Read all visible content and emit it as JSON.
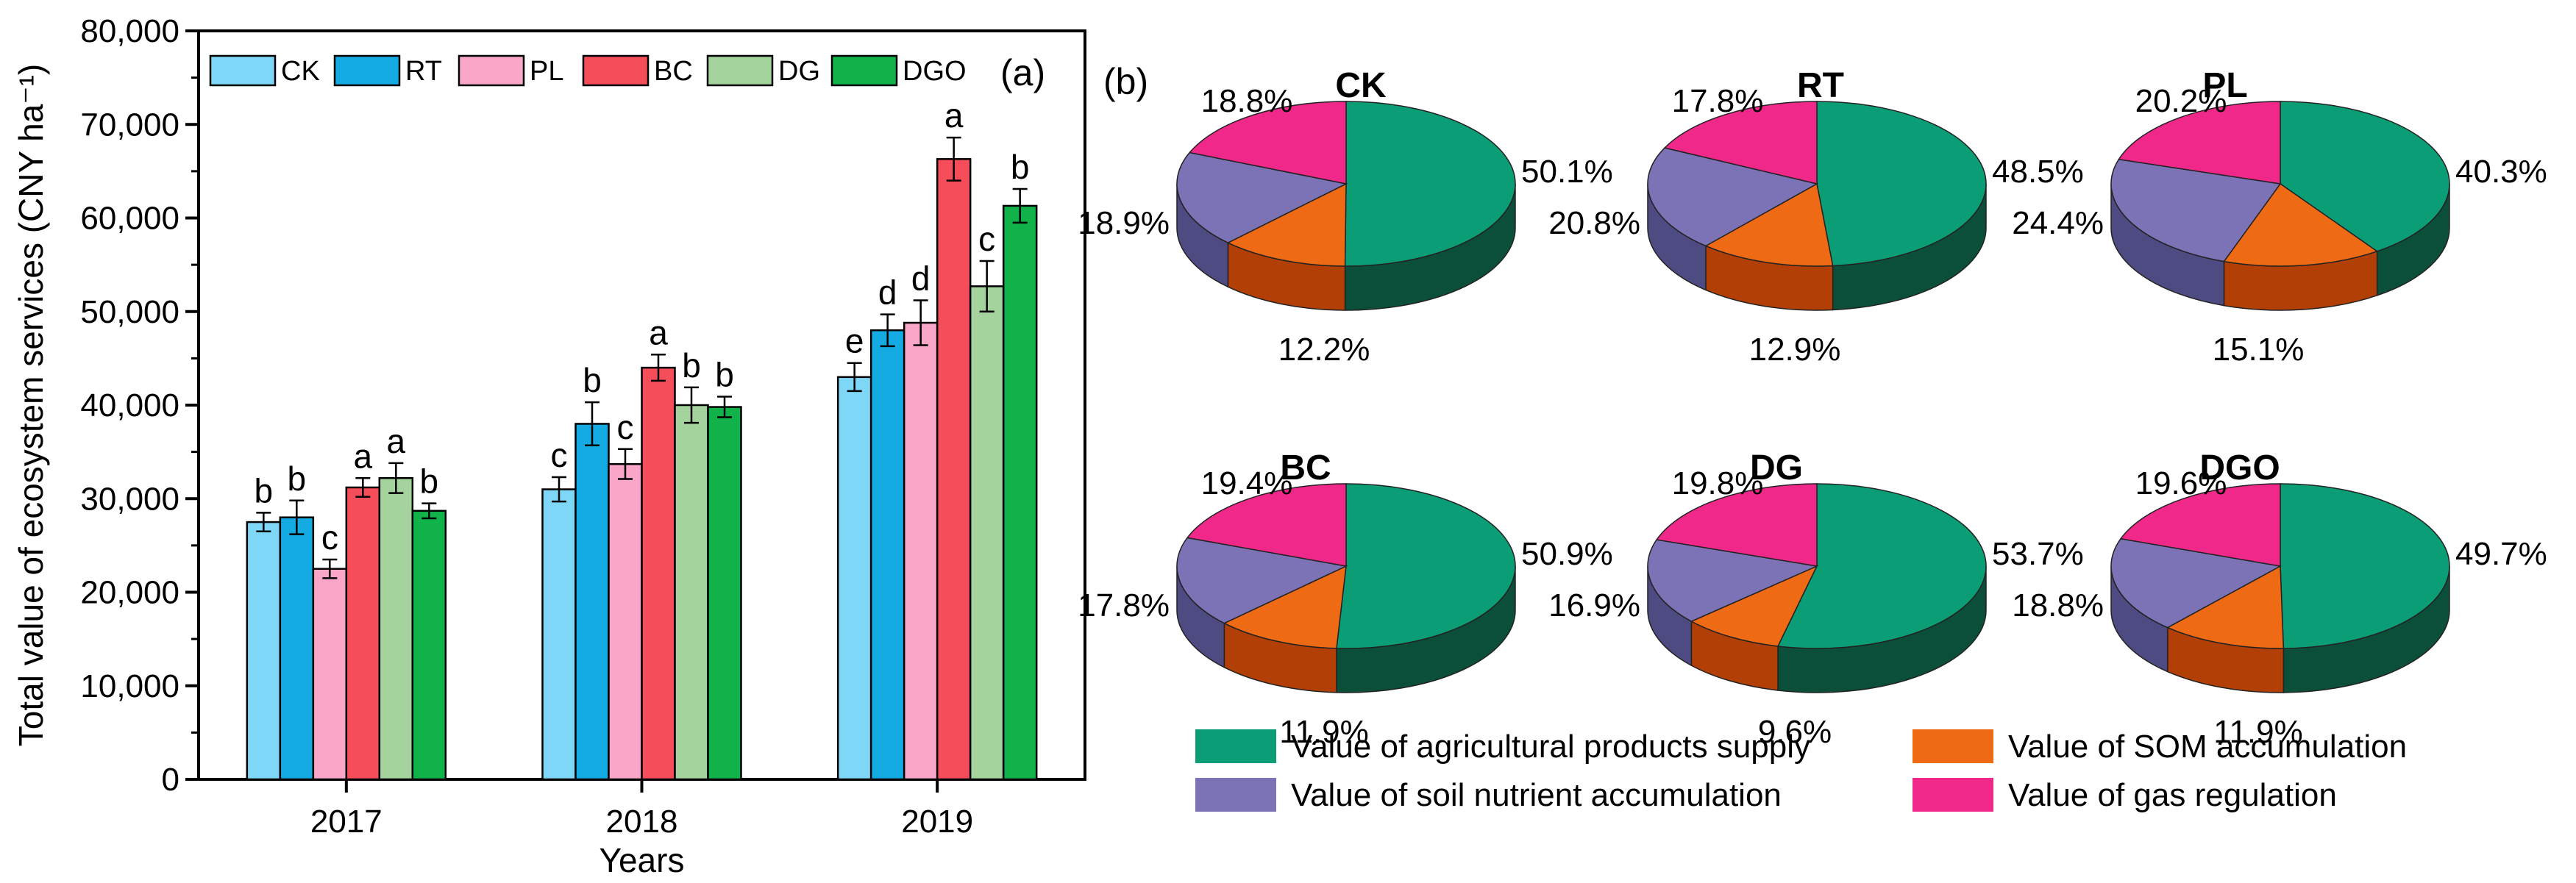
{
  "chart_data": [
    {
      "type": "bar",
      "panel_label": "(a)",
      "xlabel": "Years",
      "ylabel": "Total value of ecosystem services (CNY ha⁻¹)",
      "ylim": [
        0,
        80000
      ],
      "yticks": [
        "0",
        "10,000",
        "20,000",
        "30,000",
        "40,000",
        "50,000",
        "60,000",
        "70,000",
        "80,000"
      ],
      "categories": [
        "2017",
        "2018",
        "2019"
      ],
      "legend_position": "top",
      "series": [
        {
          "name": "CK",
          "color": "#7fd7f7",
          "values": [
            27500,
            31000,
            43000
          ],
          "errors": [
            1000,
            1300,
            1500
          ],
          "labels": [
            "b",
            "c",
            "e"
          ]
        },
        {
          "name": "RT",
          "color": "#14abe3",
          "values": [
            28000,
            38000,
            48000
          ],
          "errors": [
            1800,
            2300,
            1700
          ],
          "labels": [
            "b",
            "b",
            "d"
          ]
        },
        {
          "name": "PL",
          "color": "#f9a6c9",
          "values": [
            22500,
            33700,
            48800
          ],
          "errors": [
            1000,
            1600,
            2400
          ],
          "labels": [
            "c",
            "c",
            "d"
          ]
        },
        {
          "name": "BC",
          "color": "#f64d5a",
          "values": [
            31200,
            44000,
            66300
          ],
          "errors": [
            1000,
            1400,
            2300
          ],
          "labels": [
            "a",
            "a",
            "a"
          ]
        },
        {
          "name": "DG",
          "color": "#a5d39d",
          "values": [
            32200,
            40000,
            52700
          ],
          "errors": [
            1600,
            1900,
            2700
          ],
          "labels": [
            "a",
            "b",
            "c"
          ]
        },
        {
          "name": "DGO",
          "color": "#12b24b",
          "values": [
            28700,
            39800,
            61300
          ],
          "errors": [
            800,
            1100,
            1800
          ],
          "labels": [
            "b",
            "b",
            "b"
          ]
        }
      ]
    },
    {
      "type": "pie",
      "panel_label": "(b)",
      "categories": [
        "Value of agricultural products supply",
        "Value of SOM accumulation",
        "Value of soil nutrient accumulation",
        "Value of gas regulation"
      ],
      "colors": [
        "#0b9e76",
        "#ef6a14",
        "#7c72b6",
        "#f0288a"
      ],
      "side_colors": [
        "#0b4f3b",
        "#b23f06",
        "#4e4a82",
        "#a81862"
      ],
      "pies": [
        {
          "title": "CK",
          "values": [
            50.1,
            12.2,
            18.9,
            18.8
          ],
          "labels": [
            "50.1%",
            "12.2%",
            "18.9%",
            "18.8%"
          ]
        },
        {
          "title": "RT",
          "values": [
            48.5,
            12.9,
            20.8,
            17.8
          ],
          "labels": [
            "48.5%",
            "12.9%",
            "20.8%",
            "17.8%"
          ]
        },
        {
          "title": "PL",
          "values": [
            40.3,
            15.1,
            24.4,
            20.2
          ],
          "labels": [
            "40.3%",
            "15.1%",
            "24.4%",
            "20.2%"
          ]
        },
        {
          "title": "BC",
          "values": [
            50.9,
            11.9,
            17.8,
            19.4
          ],
          "labels": [
            "50.9%",
            "11.9%",
            "17.8%",
            "19.4%"
          ]
        },
        {
          "title": "DG",
          "values": [
            53.7,
            9.6,
            16.9,
            19.8
          ],
          "labels": [
            "53.7%",
            "9.6%",
            "16.9%",
            "19.8%"
          ]
        },
        {
          "title": "DGO",
          "values": [
            49.7,
            11.9,
            18.8,
            19.6
          ],
          "labels": [
            "49.7%",
            "11.9%",
            "18.8%",
            "19.6%"
          ]
        }
      ]
    }
  ]
}
